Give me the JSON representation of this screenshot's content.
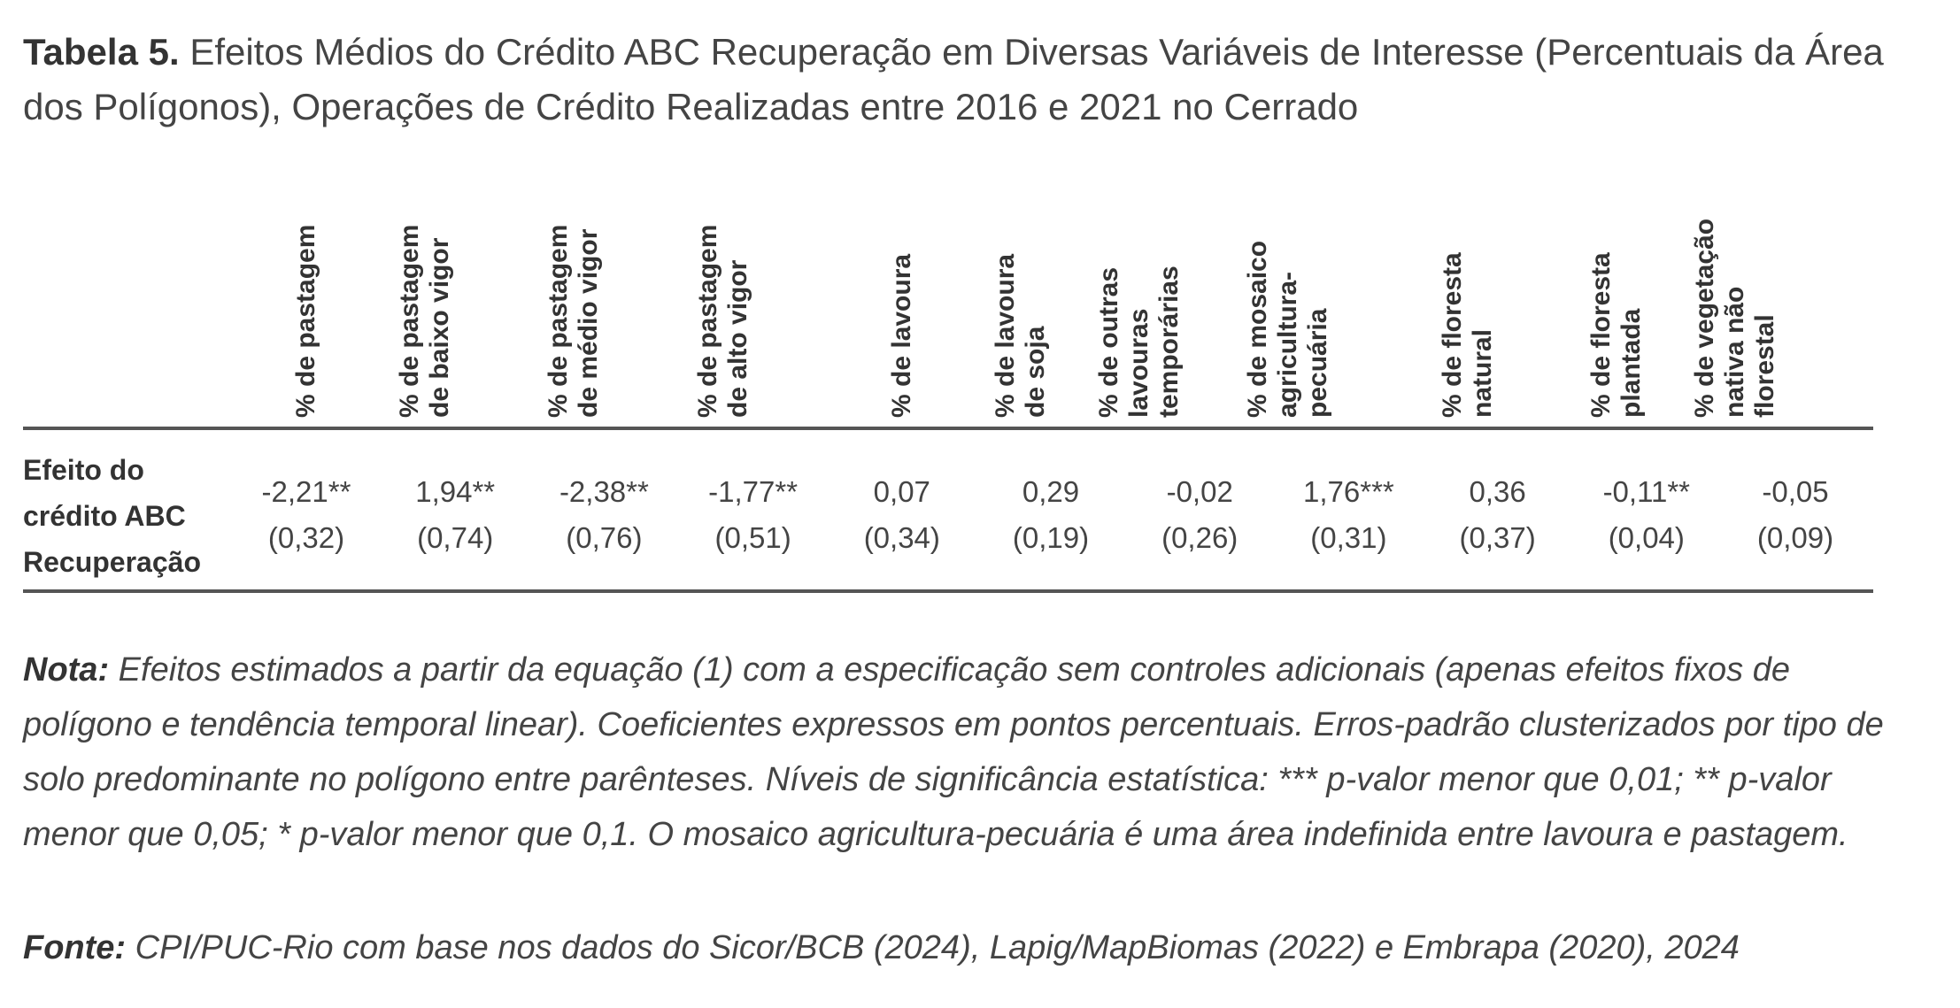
{
  "title": {
    "label": "Tabela 5.",
    "text": "Efeitos Médios do Crédito ABC Recuperação em Diversas Variáveis de Interesse (Percentuais da Área dos Polígonos), Operações de Crédito Realizadas entre 2016 e 2021 no Cerrado"
  },
  "table": {
    "columns": [
      {
        "lines": [
          "% de pastagem"
        ]
      },
      {
        "lines": [
          "% de pastagem",
          "de baixo vigor"
        ]
      },
      {
        "lines": [
          "% de pastagem",
          "de médio vigor"
        ]
      },
      {
        "lines": [
          "% de pastagem",
          "de alto vigor"
        ]
      },
      {
        "lines": [
          "% de lavoura"
        ]
      },
      {
        "lines": [
          "% de lavoura",
          "de soja"
        ]
      },
      {
        "lines": [
          "% de outras",
          "lavouras",
          "temporárias"
        ]
      },
      {
        "lines": [
          "% de mosaico",
          "agricultura-",
          "pecuária"
        ]
      },
      {
        "lines": [
          "% de floresta",
          "natural"
        ]
      },
      {
        "lines": [
          "% de floresta",
          "plantada"
        ]
      },
      {
        "lines": [
          "% de vegetação",
          "nativa não",
          "florestal"
        ]
      }
    ],
    "row": {
      "label_lines": [
        "Efeito do",
        "crédito ABC",
        "Recuperação"
      ],
      "cells": [
        {
          "coef": "-2,21**",
          "se": "(0,32)"
        },
        {
          "coef": "1,94**",
          "se": "(0,74)"
        },
        {
          "coef": "-2,38**",
          "se": "(0,76)"
        },
        {
          "coef": "-1,77**",
          "se": "(0,51)"
        },
        {
          "coef": "0,07",
          "se": "(0,34)"
        },
        {
          "coef": "0,29",
          "se": "(0,19)"
        },
        {
          "coef": "-0,02",
          "se": "(0,26)"
        },
        {
          "coef": "1,76***",
          "se": "(0,31)"
        },
        {
          "coef": "0,36",
          "se": "(0,37)"
        },
        {
          "coef": "-0,11**",
          "se": "(0,04)"
        },
        {
          "coef": "-0,05",
          "se": "(0,09)"
        }
      ]
    }
  },
  "note": {
    "label": "Nota:",
    "text": "Efeitos estimados a partir da equação (1) com a especificação sem controles adicionais (apenas efeitos fixos de polígono e tendência temporal linear). Coeficientes expressos em pontos percentuais. Erros-padrão clusterizados por tipo de solo predominante no polígono entre parênteses. Níveis de significância estatística: *** p-valor menor que 0,01; ** p-valor menor que 0,05; * p-valor menor que 0,1. O mosaico agricultura-pecuária é uma área indefinida entre lavoura e pastagem."
  },
  "source": {
    "label": "Fonte:",
    "text": "CPI/PUC-Rio com base nos dados do Sicor/BCB (2024), Lapig/MapBiomas (2022) e Embrapa (2020), 2024"
  }
}
